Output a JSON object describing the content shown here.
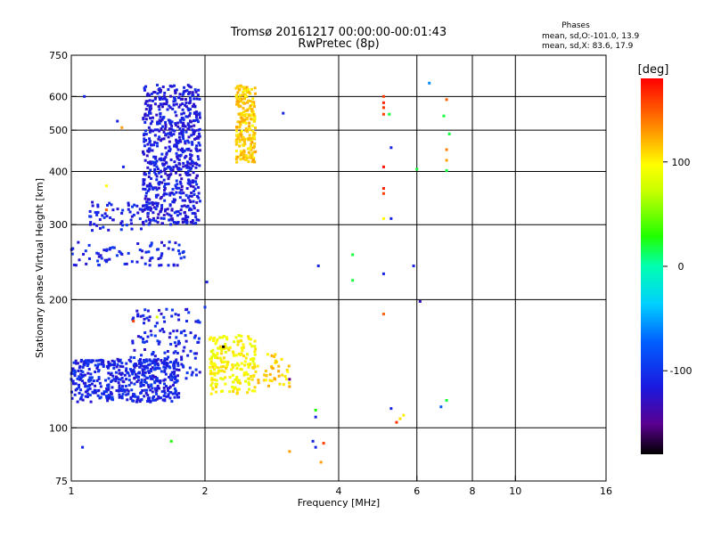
{
  "chart_data": {
    "type": "scatter",
    "title": "Tromsø 20161217 00:00:00-00:01:43",
    "subtitle": "RwPretec (8p)",
    "xlabel": "Frequency [MHz]",
    "ylabel": "Stationary phase Virtual Height [km]",
    "x_scale": "log",
    "y_scale": "log",
    "xlim": [
      1,
      16
    ],
    "ylim": [
      75,
      750
    ],
    "x_ticks": [
      1,
      2,
      4,
      6,
      8,
      10,
      16
    ],
    "y_ticks": [
      75,
      100,
      200,
      300,
      400,
      500,
      600,
      750
    ],
    "x_gridlines": [
      2,
      4,
      6,
      8,
      10
    ],
    "y_gridlines": [
      100,
      200,
      300,
      400,
      500,
      600
    ],
    "stats": {
      "heading": "Phases",
      "line1": "mean, sd,O:-101.0, 13.9",
      "line2": "mean, sd,X: 83.6, 17.9"
    },
    "colorbar": {
      "label": "[deg]",
      "min": -180,
      "max": 180,
      "ticks": [
        100,
        0,
        -100
      ]
    },
    "clusters": [
      {
        "f": [
          1.45,
          1.95
        ],
        "h": [
          300,
          640
        ],
        "phase": -115,
        "count": 700
      },
      {
        "f": [
          1.0,
          1.75
        ],
        "h": [
          115,
          145
        ],
        "phase": -110,
        "count": 450
      },
      {
        "f": [
          1.35,
          1.95
        ],
        "h": [
          130,
          190
        ],
        "phase": -110,
        "count": 150
      },
      {
        "f": [
          1.0,
          1.8
        ],
        "h": [
          240,
          275
        ],
        "phase": -110,
        "count": 80
      },
      {
        "f": [
          1.1,
          1.5
        ],
        "h": [
          290,
          340
        ],
        "phase": -110,
        "count": 60
      },
      {
        "f": [
          2.35,
          2.6
        ],
        "h": [
          420,
          640
        ],
        "phase": 115,
        "count": 220
      },
      {
        "f": [
          2.05,
          2.6
        ],
        "h": [
          120,
          165
        ],
        "phase": 100,
        "count": 200
      },
      {
        "f": [
          2.6,
          3.1
        ],
        "h": [
          125,
          150
        ],
        "phase": 115,
        "count": 40
      }
    ],
    "points": [
      {
        "f": 1.07,
        "h": 600,
        "p": -110
      },
      {
        "f": 1.27,
        "h": 525,
        "p": -110
      },
      {
        "f": 1.3,
        "h": 507,
        "p": 130
      },
      {
        "f": 1.31,
        "h": 410,
        "p": -110
      },
      {
        "f": 1.2,
        "h": 370,
        "p": 100
      },
      {
        "f": 1.2,
        "h": 325,
        "p": 150
      },
      {
        "f": 2.02,
        "h": 220,
        "p": -110
      },
      {
        "f": 1.0,
        "h": 130,
        "p": -110
      },
      {
        "f": 1.06,
        "h": 90,
        "p": -110
      },
      {
        "f": 1.68,
        "h": 93,
        "p": 30
      },
      {
        "f": 1.38,
        "h": 178,
        "p": 160
      },
      {
        "f": 1.56,
        "h": 182,
        "p": 80
      },
      {
        "f": 2.0,
        "h": 192,
        "p": -100
      },
      {
        "f": 2.2,
        "h": 155,
        "p": -180
      },
      {
        "f": 3.0,
        "h": 548,
        "p": -110
      },
      {
        "f": 3.1,
        "h": 130,
        "p": -150
      },
      {
        "f": 3.1,
        "h": 125,
        "p": 130
      },
      {
        "f": 3.55,
        "h": 110,
        "p": 30
      },
      {
        "f": 3.55,
        "h": 106,
        "p": -110
      },
      {
        "f": 3.5,
        "h": 93,
        "p": -110
      },
      {
        "f": 3.55,
        "h": 90,
        "p": -110
      },
      {
        "f": 3.7,
        "h": 92,
        "p": 160
      },
      {
        "f": 3.65,
        "h": 83,
        "p": 130
      },
      {
        "f": 3.1,
        "h": 88,
        "p": 130
      },
      {
        "f": 3.6,
        "h": 240,
        "p": -110
      },
      {
        "f": 4.3,
        "h": 222,
        "p": 20
      },
      {
        "f": 4.3,
        "h": 255,
        "p": 20
      },
      {
        "f": 5.05,
        "h": 600,
        "p": 160
      },
      {
        "f": 5.05,
        "h": 580,
        "p": 170
      },
      {
        "f": 5.05,
        "h": 565,
        "p": 165
      },
      {
        "f": 5.05,
        "h": 545,
        "p": 160
      },
      {
        "f": 5.2,
        "h": 545,
        "p": 20
      },
      {
        "f": 5.05,
        "h": 410,
        "p": 175
      },
      {
        "f": 5.05,
        "h": 365,
        "p": 170
      },
      {
        "f": 5.05,
        "h": 355,
        "p": 160
      },
      {
        "f": 5.05,
        "h": 310,
        "p": 100
      },
      {
        "f": 5.25,
        "h": 310,
        "p": -110
      },
      {
        "f": 5.25,
        "h": 455,
        "p": -110
      },
      {
        "f": 5.05,
        "h": 230,
        "p": -110
      },
      {
        "f": 5.05,
        "h": 185,
        "p": 150
      },
      {
        "f": 5.25,
        "h": 111,
        "p": -110
      },
      {
        "f": 5.4,
        "h": 103,
        "p": 165
      },
      {
        "f": 5.5,
        "h": 105,
        "p": 110
      },
      {
        "f": 5.6,
        "h": 107,
        "p": 105
      },
      {
        "f": 5.9,
        "h": 240,
        "p": -110
      },
      {
        "f": 6.0,
        "h": 405,
        "p": 20
      },
      {
        "f": 6.1,
        "h": 198,
        "p": -130
      },
      {
        "f": 6.4,
        "h": 645,
        "p": -60
      },
      {
        "f": 7.0,
        "h": 590,
        "p": 150
      },
      {
        "f": 6.9,
        "h": 540,
        "p": 20
      },
      {
        "f": 7.1,
        "h": 490,
        "p": 20
      },
      {
        "f": 7.0,
        "h": 450,
        "p": 140
      },
      {
        "f": 7.0,
        "h": 425,
        "p": 130
      },
      {
        "f": 7.0,
        "h": 402,
        "p": 20
      },
      {
        "f": 6.8,
        "h": 112,
        "p": -80
      },
      {
        "f": 7.0,
        "h": 116,
        "p": 20
      }
    ]
  }
}
